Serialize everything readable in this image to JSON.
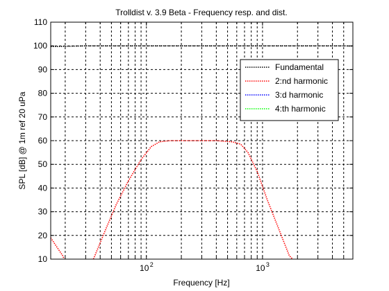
{
  "chart_data": {
    "type": "line",
    "title": "Trolldist v. 3.9 Beta - Frequency resp. and dist.",
    "xlabel": "Frequency [Hz]",
    "ylabel": "SPL [dB] @ 1m ref 20 uPa",
    "x_scale": "log",
    "xlim": [
      15,
      6000
    ],
    "ylim": [
      10,
      110
    ],
    "y_ticks": [
      10,
      20,
      30,
      40,
      50,
      60,
      70,
      80,
      90,
      100,
      110
    ],
    "x_ticks": [
      {
        "value": 100,
        "base": "10",
        "exp": "2"
      },
      {
        "value": 1000,
        "base": "10",
        "exp": "3"
      }
    ],
    "grid": true,
    "legend_position": "top-right",
    "series": [
      {
        "name": "Fundamental",
        "color": "#000000",
        "style": "dotted",
        "x": [
          15,
          20,
          30,
          50,
          100,
          200,
          500,
          1000,
          2000,
          5000,
          6000
        ],
        "y": [
          99.7,
          99.8,
          100,
          100,
          100,
          100,
          100,
          100,
          100,
          100,
          99.9
        ]
      },
      {
        "name": "2:nd harmonic",
        "color": "#ff0000",
        "style": "dotted",
        "x": [
          15,
          17,
          19,
          20,
          35,
          45,
          55,
          70,
          90,
          110,
          130,
          160,
          250,
          400,
          550,
          650,
          750,
          900,
          1100,
          1400,
          1700,
          1900
        ],
        "y": [
          19,
          15,
          11.5,
          9,
          10,
          23,
          33,
          43,
          52,
          57.5,
          59.5,
          60,
          60,
          60,
          59.5,
          58.5,
          55,
          47,
          35,
          22,
          11.5,
          9
        ]
      },
      {
        "name": "3:d harmonic",
        "color": "#0000ff",
        "style": "dotted",
        "x": [],
        "y": []
      },
      {
        "name": "4:th harmonic",
        "color": "#00ff00",
        "style": "dotted",
        "x": [],
        "y": []
      }
    ]
  }
}
